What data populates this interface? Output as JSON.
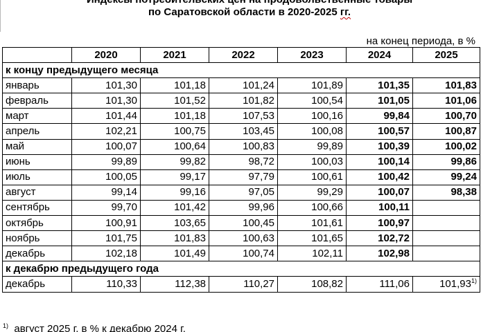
{
  "title_line1": "Индексы потребительских цен на продовольственные товары",
  "title_line2": "по Саратовской области в 2020-2025 гг.",
  "units": "на конец периода, в %",
  "headers": [
    "",
    "2020",
    "2021",
    "2022",
    "2023",
    "2024",
    "2025"
  ],
  "section1": "к концу предыдущего месяца",
  "monthly_rows": [
    {
      "label": "январь",
      "values": [
        "101,30",
        "101,18",
        "101,24",
        "101,89",
        "101,35",
        "101,83"
      ]
    },
    {
      "label": "февраль",
      "values": [
        "101,30",
        "101,52",
        "101,82",
        "100,54",
        "101,05",
        "101,06"
      ]
    },
    {
      "label": "март",
      "values": [
        "101,44",
        "101,18",
        "107,53",
        "100,16",
        "99,84",
        "100,70"
      ]
    },
    {
      "label": "апрель",
      "values": [
        "102,21",
        "100,75",
        "103,45",
        "100,08",
        "100,57",
        "100,87"
      ]
    },
    {
      "label": "май",
      "values": [
        "100,07",
        "100,64",
        "100,83",
        "99,89",
        "100,39",
        "100,02"
      ]
    },
    {
      "label": "июнь",
      "values": [
        "99,89",
        "99,82",
        "98,72",
        "100,03",
        "100,14",
        "99,86"
      ]
    },
    {
      "label": "июль",
      "values": [
        "100,05",
        "99,17",
        "97,79",
        "100,61",
        "100,42",
        "99,24"
      ]
    },
    {
      "label": "август",
      "values": [
        "99,14",
        "99,16",
        "97,05",
        "99,29",
        "100,07",
        "98,38"
      ]
    },
    {
      "label": "сентябрь",
      "values": [
        "99,70",
        "101,42",
        "99,96",
        "100,66",
        "100,11",
        ""
      ]
    },
    {
      "label": "октябрь",
      "values": [
        "100,91",
        "103,65",
        "100,45",
        "101,61",
        "100,97",
        ""
      ]
    },
    {
      "label": "ноябрь",
      "values": [
        "101,75",
        "101,83",
        "100,63",
        "101,65",
        "102,72",
        ""
      ]
    },
    {
      "label": "декабрь",
      "values": [
        "102,18",
        "101,49",
        "100,74",
        "102,11",
        "102,98",
        ""
      ]
    }
  ],
  "section2": "к декабрю предыдущего года",
  "annual_row": {
    "label": "декабрь",
    "values": [
      "110,33",
      "112,38",
      "110,27",
      "108,82",
      "111,06",
      "101,93"
    ],
    "last_footnote_mark": "1)"
  },
  "footnote": {
    "mark": "1)",
    "text_a": "август 2025 ",
    "text_gg": "г.",
    "text_b": " в % к декабрю 2024 ",
    "text_g2": "г."
  }
}
